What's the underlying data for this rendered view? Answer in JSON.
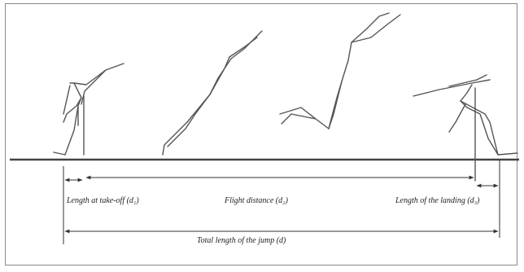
{
  "labels": {
    "takeoff": "Length at take-off (d₁)",
    "flight": "Flight distance (d₂)",
    "landing": "Length of the landing (d₃)",
    "total": "Total length of the jump (d)"
  },
  "colors": {
    "ground": "#444444",
    "figure": "#555555",
    "border": "#8a8a8a"
  }
}
